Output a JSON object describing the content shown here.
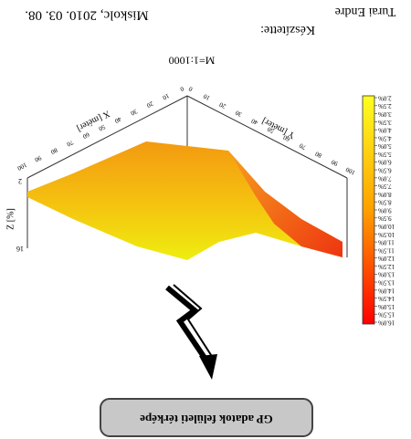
{
  "header": {
    "place_date": "Miskolc, 2010. 03. 08.",
    "author_label": "Készítette:",
    "author": "Turai Endre"
  },
  "scale": "M=1:1000",
  "plot": {
    "x_axis": {
      "title": "X [méter]",
      "ticks": [
        0,
        10,
        20,
        30,
        40,
        50,
        60,
        70,
        80,
        90,
        100
      ]
    },
    "y_axis": {
      "title": "Y [méter]",
      "ticks": [
        0,
        10,
        20,
        30,
        40,
        50,
        60,
        70,
        80,
        90,
        100
      ]
    },
    "z_axis": {
      "title": "Z [%]",
      "ticks": [
        2,
        16
      ]
    },
    "colorbar": {
      "labels": [
        "2.0%",
        "2.5%",
        "3.0%",
        "3.5%",
        "4.0%",
        "4.5%",
        "5.0%",
        "5.5%",
        "6.0%",
        "6.5%",
        "7.0%",
        "7.5%",
        "8.0%",
        "8.5%",
        "9.0%",
        "9.5%",
        "10.0%",
        "10.5%",
        "11.0%",
        "11.5%",
        "12.0%",
        "12.5%",
        "13.0%",
        "13.5%",
        "14.0%",
        "14.5%",
        "15.0%",
        "15.5%",
        "16.0%"
      ]
    }
  },
  "button": {
    "label": "GP adatok felületi térképe"
  }
}
